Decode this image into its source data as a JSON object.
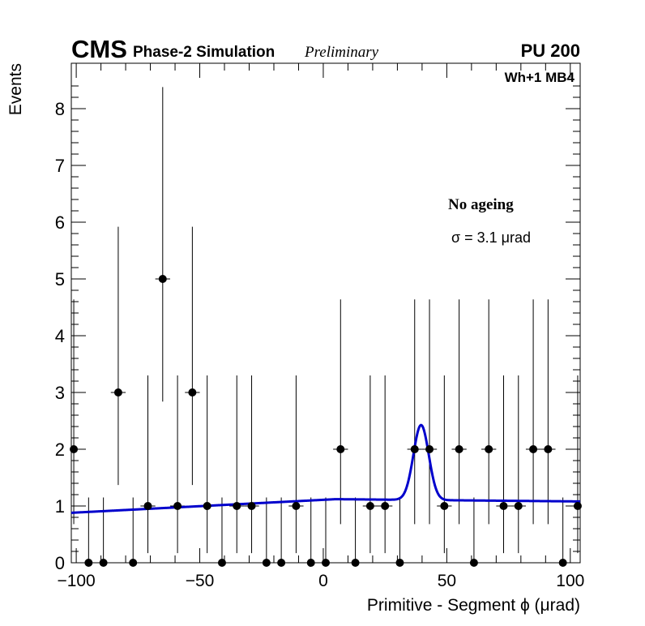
{
  "chart_data": {
    "type": "scatter",
    "header": {
      "experiment": "CMS",
      "simulation": "Phase-2 Simulation",
      "status": "Preliminary",
      "pileup": "PU 200",
      "chamber": "Wh+1 MB4"
    },
    "annotations": {
      "condition": "No ageing",
      "sigma": "σ = 3.1 μrad"
    },
    "xlabel": "Primitive - Segment ϕ (μrad)",
    "ylabel": "Events",
    "xlim": [
      -102,
      104
    ],
    "ylim": [
      0,
      8.8
    ],
    "x_ticks": [
      -100,
      -50,
      0,
      50,
      100
    ],
    "x_tick_labels": [
      "−100",
      "−50",
      "0",
      "50",
      "100"
    ],
    "y_ticks": [
      0,
      1,
      2,
      3,
      4,
      5,
      6,
      7,
      8
    ],
    "y_tick_labels": [
      "0",
      "1",
      "2",
      "3",
      "4",
      "5",
      "6",
      "7",
      "8"
    ],
    "grid": false,
    "bin_half_width": 3,
    "points": [
      {
        "x": -101,
        "y": 2,
        "yerr_low": 1.32,
        "yerr_high": 2.64
      },
      {
        "x": -95,
        "y": 0,
        "yerr_low": 0,
        "yerr_high": 1.15
      },
      {
        "x": -89,
        "y": 0,
        "yerr_low": 0,
        "yerr_high": 1.15
      },
      {
        "x": -83,
        "y": 3,
        "yerr_low": 1.63,
        "yerr_high": 2.92
      },
      {
        "x": -77,
        "y": 0,
        "yerr_low": 0,
        "yerr_high": 1.15
      },
      {
        "x": -71,
        "y": 1,
        "yerr_low": 0.83,
        "yerr_high": 2.3
      },
      {
        "x": -65,
        "y": 5,
        "yerr_low": 2.16,
        "yerr_high": 3.38
      },
      {
        "x": -59,
        "y": 1,
        "yerr_low": 0.83,
        "yerr_high": 2.3
      },
      {
        "x": -53,
        "y": 3,
        "yerr_low": 1.63,
        "yerr_high": 2.92
      },
      {
        "x": -47,
        "y": 1,
        "yerr_low": 0.83,
        "yerr_high": 2.3
      },
      {
        "x": -41,
        "y": 0,
        "yerr_low": 0,
        "yerr_high": 1.15
      },
      {
        "x": -35,
        "y": 1,
        "yerr_low": 0.83,
        "yerr_high": 2.3
      },
      {
        "x": -29,
        "y": 1,
        "yerr_low": 0.83,
        "yerr_high": 2.3
      },
      {
        "x": -23,
        "y": 0,
        "yerr_low": 0,
        "yerr_high": 1.15
      },
      {
        "x": -17,
        "y": 0,
        "yerr_low": 0,
        "yerr_high": 1.15
      },
      {
        "x": -11,
        "y": 1,
        "yerr_low": 0.83,
        "yerr_high": 2.3
      },
      {
        "x": -5,
        "y": 0,
        "yerr_low": 0,
        "yerr_high": 1.15
      },
      {
        "x": 1,
        "y": 0,
        "yerr_low": 0,
        "yerr_high": 1.15
      },
      {
        "x": 7,
        "y": 2,
        "yerr_low": 1.32,
        "yerr_high": 2.64
      },
      {
        "x": 13,
        "y": 0,
        "yerr_low": 0,
        "yerr_high": 1.15
      },
      {
        "x": 19,
        "y": 1,
        "yerr_low": 0.83,
        "yerr_high": 2.3
      },
      {
        "x": 25,
        "y": 1,
        "yerr_low": 0.83,
        "yerr_high": 2.3
      },
      {
        "x": 31,
        "y": 0,
        "yerr_low": 0,
        "yerr_high": 1.15
      },
      {
        "x": 37,
        "y": 2,
        "yerr_low": 1.32,
        "yerr_high": 2.64
      },
      {
        "x": 43,
        "y": 2,
        "yerr_low": 1.32,
        "yerr_high": 2.64
      },
      {
        "x": 49,
        "y": 1,
        "yerr_low": 0.83,
        "yerr_high": 2.3
      },
      {
        "x": 55,
        "y": 2,
        "yerr_low": 1.32,
        "yerr_high": 2.64
      },
      {
        "x": 61,
        "y": 0,
        "yerr_low": 0,
        "yerr_high": 1.15
      },
      {
        "x": 67,
        "y": 2,
        "yerr_low": 1.32,
        "yerr_high": 2.64
      },
      {
        "x": 73,
        "y": 1,
        "yerr_low": 0.83,
        "yerr_high": 2.3
      },
      {
        "x": 79,
        "y": 1,
        "yerr_low": 0.83,
        "yerr_high": 2.3
      },
      {
        "x": 85,
        "y": 2,
        "yerr_low": 1.32,
        "yerr_high": 2.64
      },
      {
        "x": 91,
        "y": 2,
        "yerr_low": 1.32,
        "yerr_high": 2.64
      },
      {
        "x": 97,
        "y": 0,
        "yerr_low": 0,
        "yerr_high": 1.15
      },
      {
        "x": 103,
        "y": 1,
        "yerr_low": 0.83,
        "yerr_high": 2.3
      }
    ],
    "fit": {
      "color": "#0000cc",
      "function": "gaussian_plus_linear",
      "mean": 39.6,
      "sigma": 3.1,
      "amplitude": 1.32,
      "baseline_at_xmin": 0.88,
      "baseline_at_xmax": 1.08,
      "plateau_x": 5,
      "plateau_y": 1.12
    },
    "colors": {
      "markers": "#000000",
      "fit": "#0000cc",
      "frame": "#000000"
    }
  }
}
